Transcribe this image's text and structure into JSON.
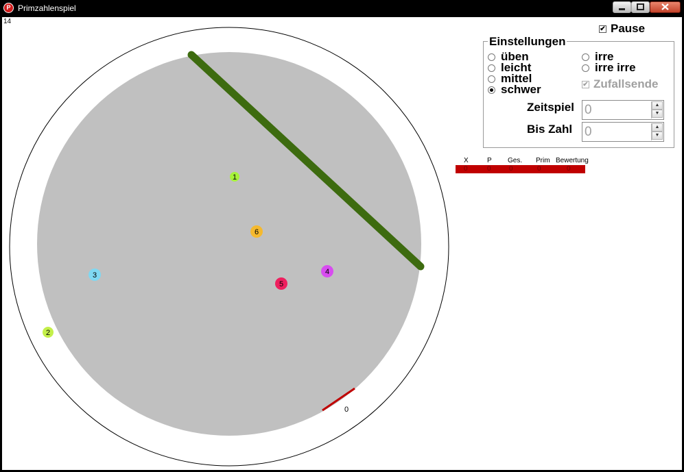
{
  "window": {
    "title": "Primzahlenspiel",
    "icon_name": "app-icon",
    "icon_text": "P"
  },
  "counter": "14",
  "pause": {
    "label": "Pause",
    "checked": true
  },
  "settings": {
    "legend": "Einstellungen",
    "levels_left": [
      {
        "label": "üben",
        "selected": false
      },
      {
        "label": "leicht",
        "selected": false
      },
      {
        "label": "mittel",
        "selected": false
      },
      {
        "label": "schwer",
        "selected": true
      }
    ],
    "levels_right": [
      {
        "label": "irre",
        "selected": false
      },
      {
        "label": "irre irre",
        "selected": false
      }
    ],
    "zufallsende": {
      "label": "Zufallsende",
      "checked": true,
      "enabled": false
    },
    "zeitspiel": {
      "label": "Zeitspiel",
      "value": "0"
    },
    "bis_zahl": {
      "label": "Bis Zahl",
      "value": "0"
    }
  },
  "stats": {
    "headers": [
      "X",
      "P",
      "Ges.",
      "Prim",
      "Bewertung"
    ],
    "values": [
      "0",
      "0",
      "0",
      "0",
      "0"
    ]
  },
  "board": {
    "outer_ring_color": "#000000",
    "inner_disc_color": "#c0c0c0",
    "bar_color": "#3d6b0f",
    "paddle_color": "#c00000",
    "balls": [
      {
        "label": "1",
        "color": "#a6f23a"
      },
      {
        "label": "2",
        "color": "#c4f04a"
      },
      {
        "label": "3",
        "color": "#7fd8f2"
      },
      {
        "label": "4",
        "color": "#d84cf0"
      },
      {
        "label": "5",
        "color": "#ee1f5e"
      },
      {
        "label": "6",
        "color": "#f5b92e"
      }
    ]
  },
  "score": "0"
}
